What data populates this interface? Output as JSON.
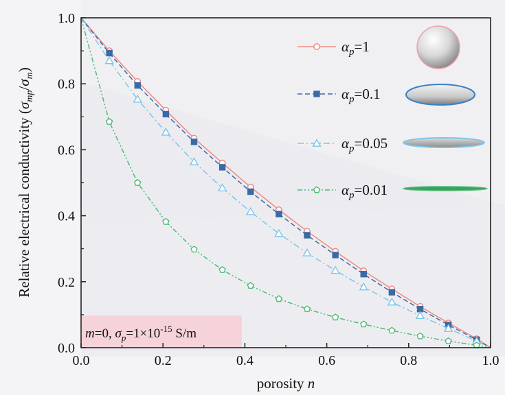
{
  "chart_data": {
    "type": "line",
    "xlabel": "porosity n",
    "ylabel": "Relative electrical conductivity (σmp/σm)",
    "xlim": [
      0.0,
      1.0
    ],
    "ylim": [
      0.0,
      1.0
    ],
    "xticks": [
      "0.0",
      "0.2",
      "0.4",
      "0.6",
      "0.8",
      "1.0"
    ],
    "yticks": [
      "0.0",
      "0.2",
      "0.4",
      "0.6",
      "0.8",
      "1.0"
    ],
    "legend_position": "top-right",
    "annotation": "m=0, σp=1×10-15 S/m",
    "series": [
      {
        "name": "αp=1",
        "color": "#f08a84",
        "marker": "open-circle",
        "line": "solid",
        "illustration": "sphere",
        "x": [
          0,
          0.069,
          0.138,
          0.207,
          0.276,
          0.345,
          0.414,
          0.483,
          0.552,
          0.621,
          0.69,
          0.759,
          0.828,
          0.897,
          0.966,
          1.0
        ],
        "y": [
          1.0,
          0.9,
          0.807,
          0.72,
          0.635,
          0.56,
          0.487,
          0.418,
          0.353,
          0.292,
          0.233,
          0.178,
          0.125,
          0.075,
          0.027,
          0.0
        ]
      },
      {
        "name": "αp=0.1",
        "color": "#3a6aa6",
        "marker": "filled-square",
        "line": "dashed",
        "illustration": "oblate-thick",
        "x": [
          0,
          0.069,
          0.138,
          0.207,
          0.276,
          0.345,
          0.414,
          0.483,
          0.552,
          0.621,
          0.69,
          0.759,
          0.828,
          0.897,
          0.966,
          1.0
        ],
        "y": [
          1.0,
          0.893,
          0.795,
          0.708,
          0.624,
          0.547,
          0.473,
          0.405,
          0.341,
          0.281,
          0.223,
          0.168,
          0.117,
          0.069,
          0.024,
          0.0
        ]
      },
      {
        "name": "αp=0.05",
        "color": "#7cc6ea",
        "marker": "open-triangle",
        "line": "dash-dot",
        "illustration": "oblate-thin",
        "x": [
          0,
          0.069,
          0.138,
          0.207,
          0.276,
          0.345,
          0.414,
          0.483,
          0.552,
          0.621,
          0.69,
          0.759,
          0.828,
          0.897,
          0.966,
          1.0
        ],
        "y": [
          1.0,
          0.87,
          0.753,
          0.653,
          0.563,
          0.484,
          0.412,
          0.346,
          0.287,
          0.234,
          0.184,
          0.138,
          0.097,
          0.058,
          0.02,
          0.0
        ]
      },
      {
        "name": "αp=0.01",
        "color": "#4dbb77",
        "marker": "open-pentagon",
        "line": "dash-dot-dot",
        "illustration": "disk",
        "x": [
          0,
          0.069,
          0.138,
          0.207,
          0.276,
          0.345,
          0.414,
          0.483,
          0.552,
          0.621,
          0.69,
          0.759,
          0.828,
          0.897,
          0.966,
          1.0
        ],
        "y": [
          1.0,
          0.685,
          0.5,
          0.382,
          0.298,
          0.236,
          0.188,
          0.148,
          0.117,
          0.092,
          0.071,
          0.052,
          0.035,
          0.02,
          0.007,
          0.0
        ]
      }
    ]
  }
}
